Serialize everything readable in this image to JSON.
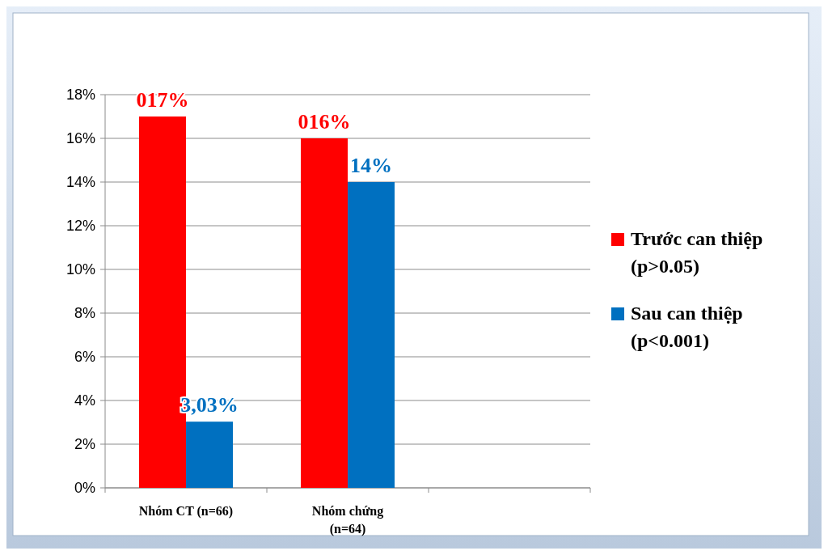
{
  "chart_data": {
    "type": "bar",
    "categories": [
      "Nhóm CT (n=66)",
      "Nhóm chứng (n=64)",
      null
    ],
    "series": [
      {
        "name": "Trước can thiệp (p>0.05)",
        "color": "#ff0000",
        "values": [
          17,
          16,
          null
        ],
        "value_labels": [
          "017%",
          "016%",
          null
        ]
      },
      {
        "name": "Sau can thiệp (p<0.001)",
        "color": "#0070c0",
        "values": [
          3.03,
          14,
          null
        ],
        "value_labels": [
          "3,03%",
          "14%",
          null
        ]
      }
    ],
    "ylim": [
      0,
      18
    ],
    "yticks": [
      {
        "value": 0,
        "label": "0%"
      },
      {
        "value": 2,
        "label": "2%"
      },
      {
        "value": 4,
        "label": "4%"
      },
      {
        "value": 6,
        "label": "6%"
      },
      {
        "value": 8,
        "label": "8%"
      },
      {
        "value": 10,
        "label": "10%"
      },
      {
        "value": 12,
        "label": "12%"
      },
      {
        "value": 14,
        "label": "14%"
      },
      {
        "value": 16,
        "label": "16%"
      },
      {
        "value": 18,
        "label": "18%"
      }
    ],
    "grid": "y",
    "legend": "right"
  }
}
